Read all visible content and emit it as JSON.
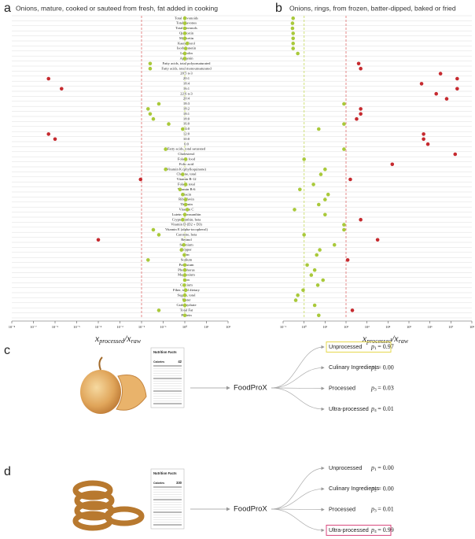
{
  "chart_data": [
    {
      "type": "scatter",
      "panel": "a",
      "title": "Onions, mature, cooked or sauteed from fresh, fat added in cooking",
      "categories": [
        "Total flavonoids",
        "Total flavones",
        "Total flavonols",
        "Quercetin",
        "Myricetin",
        "Kaempferol",
        "Isorhamnetin",
        "Luteolin",
        "Apigenin",
        "Fatty acids, total polyunsaturated",
        "Fatty acids, total monounsaturated",
        "20:5 n-3",
        "20:1",
        "18:4",
        "16:1",
        "22:6 n-3",
        "20:4",
        "18:3",
        "18:2",
        "18:1",
        "18:0",
        "16:0",
        "14:0",
        "12:0",
        "10:0",
        "6:0",
        "Fatty acids, total saturated",
        "Cholesterol",
        "Folate, food",
        "Folic acid",
        "Vitamin K (phylloquinone)",
        "Choline, total",
        "Vitamin B-12",
        "Folate, total",
        "Vitamin B-6",
        "Niacin",
        "Riboflavin",
        "Thiamin",
        "Vitamin C",
        "Lutein + zeaxanthin",
        "Cryptoxanthin, beta",
        "Vitamin D (D2 + D3)",
        "Vitamin E (alpha-tocopherol)",
        "Carotene, beta",
        "Retinol",
        "Selenium",
        "Copper",
        "Zinc",
        "Sodium",
        "Potassium",
        "Phosphorus",
        "Magnesium",
        "Iron",
        "Calcium",
        "Fiber, total dietary",
        "Sugars, total",
        "Water",
        "Carbohydrate",
        "Total Fat",
        "Protein"
      ],
      "values": [
        1,
        1,
        1,
        1,
        1,
        1.3,
        1.1,
        1,
        1,
        0.025,
        0.025,
        null,
        5e-07,
        null,
        2e-06,
        null,
        null,
        0.063,
        0.02,
        0.025,
        0.035,
        0.18,
        0.8,
        5e-07,
        1e-06,
        null,
        0.13,
        null,
        1.1,
        null,
        0.13,
        0.8,
        0.009,
        1.1,
        0.6,
        0.8,
        1.1,
        1.1,
        1.3,
        1,
        0.8,
        null,
        0.035,
        0.063,
        0.0001,
        0.9,
        0.7,
        0.95,
        0.02,
        1,
        1,
        1,
        1,
        0.95,
        1.1,
        1,
        0.95,
        1,
        0.063,
        1
      ],
      "xscale": "log",
      "xlim": [
        1e-08,
        100
      ],
      "xticks": [
        {
          "value": 1e-08,
          "label": "10⁻⁸"
        },
        {
          "value": 1e-07,
          "label": "10⁻⁷"
        },
        {
          "value": 1e-06,
          "label": "10⁻⁶"
        },
        {
          "value": 1e-05,
          "label": "10⁻⁵"
        },
        {
          "value": 0.0001,
          "label": "10⁻⁴"
        },
        {
          "value": 0.001,
          "label": "10⁻³"
        },
        {
          "value": 0.01,
          "label": "10⁻²"
        },
        {
          "value": 0.1,
          "label": "10⁻¹"
        },
        {
          "value": 1,
          "label": "10⁰"
        },
        {
          "value": 10,
          "label": "10¹"
        },
        {
          "value": 100,
          "label": "10²"
        }
      ],
      "xlabel": [
        "x",
        "processed",
        "/x",
        "raw"
      ],
      "reference_lines": [
        {
          "value": 0.01,
          "color": "#e58a8a"
        },
        {
          "value": 1,
          "color": "#cfe07a"
        }
      ],
      "in_range": [
        0.01,
        100
      ],
      "color_in": "#a9c93a",
      "color_out": "#c62a2f",
      "grid": true
    },
    {
      "type": "scatter",
      "panel": "b",
      "title": "Onions, rings, from frozen, batter-dipped, baked or fried",
      "values": [
        0.3,
        0.28,
        0.28,
        0.3,
        0.3,
        0.3,
        0.3,
        0.5,
        null,
        400,
        500,
        3200000,
        20000000,
        400000,
        20000000,
        2000000,
        6300000,
        80,
        500,
        500,
        320,
        80,
        5,
        500000,
        500000,
        800000,
        80,
        16000000,
        1,
        16000,
        10,
        6.3,
        160,
        2.8,
        0.63,
        14,
        10,
        5,
        0.35,
        10,
        500,
        80,
        80,
        1,
        3200,
        28,
        5.6,
        4,
        120,
        1.4,
        3.2,
        2.2,
        8,
        4.5,
        0.9,
        0.5,
        0.4,
        3.2,
        200,
        5
      ],
      "xscale": "log",
      "xlim": [
        0.1,
        100000000
      ],
      "xticks": [
        {
          "value": 0.1,
          "label": "10⁻¹"
        },
        {
          "value": 1,
          "label": "10⁰"
        },
        {
          "value": 10,
          "label": "10¹"
        },
        {
          "value": 100,
          "label": "10²"
        },
        {
          "value": 1000,
          "label": "10³"
        },
        {
          "value": 10000,
          "label": "10⁴"
        },
        {
          "value": 100000,
          "label": "10⁵"
        },
        {
          "value": 1000000,
          "label": "10⁶"
        },
        {
          "value": 10000000,
          "label": "10⁷"
        },
        {
          "value": 100000000,
          "label": "10⁸"
        }
      ],
      "xlabel": [
        "x",
        "processed",
        "/x",
        "raw"
      ],
      "reference_lines": [
        {
          "value": 1,
          "color": "#cfe07a"
        },
        {
          "value": 100,
          "color": "#e58a8a"
        }
      ],
      "in_range": [
        0.01,
        100
      ],
      "color_in": "#a9c93a",
      "color_out": "#c62a2f",
      "grid": true
    }
  ],
  "diagrams": [
    {
      "panel": "c",
      "food": "onion",
      "label_title": "Nutrition Facts",
      "label_calories": "Calories",
      "calories": "42",
      "model": "FoodProX",
      "prob_symbol": "p",
      "outputs": [
        {
          "class": "Unprocessed",
          "index": "1",
          "prob": "= 0.97",
          "color": "#6fcfa8"
        },
        {
          "class": "Culinary Ingredients",
          "index": "2",
          "prob": "= 0.00",
          "color": "#f0874f"
        },
        {
          "class": "Processed",
          "index": "3",
          "prob": "= 0.03",
          "color": "#6f8fd8"
        },
        {
          "class": "Ultra-processed",
          "index": "4",
          "prob": "= 0.01",
          "color": "#e0609a"
        }
      ],
      "highlight": 0,
      "highlight_color": "#e6d84e"
    },
    {
      "panel": "d",
      "food": "rings",
      "label_title": "Nutrition Facts",
      "label_calories": "Calories",
      "calories": "330",
      "model": "FoodProX",
      "prob_symbol": "p",
      "outputs": [
        {
          "class": "Unprocessed",
          "index": "1",
          "prob": "= 0.00",
          "color": "#6fcfa8"
        },
        {
          "class": "Culinary Ingredients",
          "index": "2",
          "prob": "= 0.00",
          "color": "#f0874f"
        },
        {
          "class": "Processed",
          "index": "3",
          "prob": "= 0.01",
          "color": "#6f8fd8"
        },
        {
          "class": "Ultra-processed",
          "index": "4",
          "prob": "= 0.99",
          "color": "#e0609a"
        }
      ],
      "highlight": 3,
      "highlight_color": "#d9457c"
    }
  ]
}
